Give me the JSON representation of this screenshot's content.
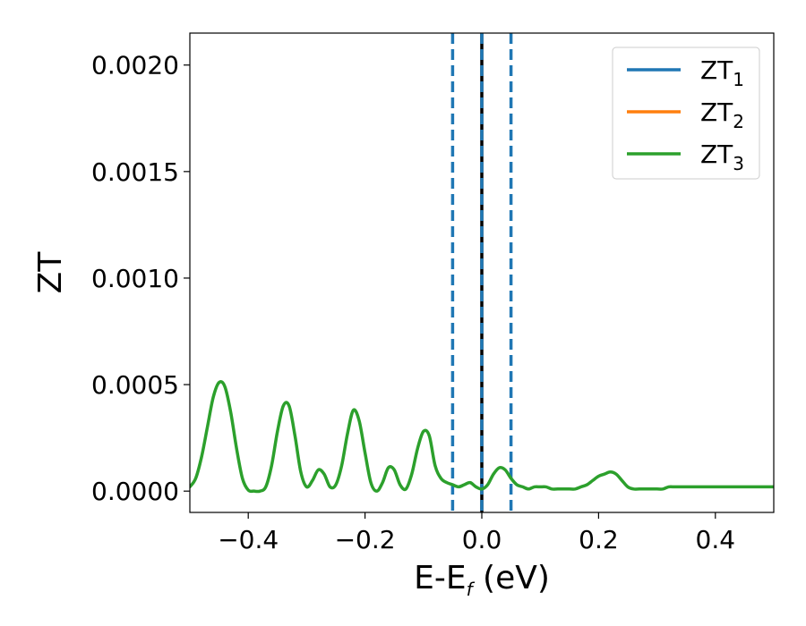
{
  "chart_data": {
    "type": "line",
    "xlabel": {
      "main": "E-E",
      "sub": "f",
      "suffix": " (eV)"
    },
    "ylabel": "ZT",
    "xlim": [
      -0.5,
      0.5
    ],
    "ylim": [
      -0.0001,
      0.00215
    ],
    "xticks": [
      -0.4,
      -0.2,
      0.0,
      0.2,
      0.4
    ],
    "xtick_labels": [
      "−0.4",
      "−0.2",
      "0.0",
      "0.2",
      "0.4"
    ],
    "yticks": [
      0.0,
      0.0005,
      0.001,
      0.0015,
      0.002
    ],
    "ytick_labels": [
      "0.0000",
      "0.0005",
      "0.0010",
      "0.0015",
      "0.0020"
    ],
    "grid": false,
    "legend_position": "top-right",
    "vlines": [
      {
        "x": -0.05,
        "color": "#1f77b4",
        "style": "dashed"
      },
      {
        "x": 0.05,
        "color": "#1f77b4",
        "style": "dashed"
      },
      {
        "x": 0.0,
        "color": "#000000",
        "style": "solid"
      },
      {
        "x": 0.0,
        "color": "#1f77b4",
        "style": "dashed"
      }
    ],
    "series": [
      {
        "name": "ZT",
        "sub": "1",
        "color": "#1f77b4",
        "x": [],
        "y": []
      },
      {
        "name": "ZT",
        "sub": "2",
        "color": "#ff7f0e",
        "x": [],
        "y": []
      },
      {
        "name": "ZT",
        "sub": "3",
        "color": "#2ca02c",
        "x": [
          -0.5,
          -0.49,
          -0.48,
          -0.47,
          -0.46,
          -0.45,
          -0.44,
          -0.43,
          -0.42,
          -0.41,
          -0.4,
          -0.39,
          -0.38,
          -0.37,
          -0.36,
          -0.35,
          -0.34,
          -0.33,
          -0.32,
          -0.31,
          -0.3,
          -0.29,
          -0.28,
          -0.27,
          -0.26,
          -0.25,
          -0.24,
          -0.23,
          -0.22,
          -0.21,
          -0.2,
          -0.19,
          -0.18,
          -0.17,
          -0.16,
          -0.15,
          -0.14,
          -0.13,
          -0.12,
          -0.11,
          -0.1,
          -0.09,
          -0.08,
          -0.07,
          -0.06,
          -0.05,
          -0.04,
          -0.03,
          -0.02,
          -0.01,
          0.0,
          0.01,
          0.02,
          0.03,
          0.04,
          0.05,
          0.06,
          0.07,
          0.08,
          0.09,
          0.1,
          0.11,
          0.12,
          0.13,
          0.14,
          0.15,
          0.16,
          0.17,
          0.18,
          0.19,
          0.2,
          0.21,
          0.22,
          0.23,
          0.24,
          0.25,
          0.26,
          0.27,
          0.28,
          0.29,
          0.3,
          0.31,
          0.32,
          0.33,
          0.34,
          0.35,
          0.36,
          0.37,
          0.38,
          0.39,
          0.4,
          0.41,
          0.42,
          0.43,
          0.44,
          0.45,
          0.46,
          0.47,
          0.48,
          0.49,
          0.5
        ],
        "y": [
          2e-05,
          6e-05,
          0.00016,
          0.0003,
          0.00044,
          0.00051,
          0.00049,
          0.00037,
          0.0002,
          6e-05,
          5e-06,
          0.0,
          0.0,
          2e-05,
          0.00012,
          0.00028,
          0.0004,
          0.0004,
          0.00026,
          9e-05,
          2e-05,
          5e-05,
          0.0001,
          8e-05,
          2e-05,
          3e-05,
          0.00012,
          0.00027,
          0.00038,
          0.00033,
          0.00018,
          4e-05,
          0.0,
          4e-05,
          0.00011,
          0.0001,
          3e-05,
          1e-05,
          8e-05,
          0.0002,
          0.00028,
          0.00026,
          0.00012,
          6e-05,
          4e-05,
          3e-05,
          2e-05,
          3e-05,
          4e-05,
          2e-05,
          1e-05,
          3e-05,
          8e-05,
          0.00011,
          0.0001,
          6e-05,
          3e-05,
          2e-05,
          1e-05,
          2e-05,
          2e-05,
          2e-05,
          1e-05,
          1e-05,
          1e-05,
          1e-05,
          1e-05,
          2e-05,
          3e-05,
          5e-05,
          7e-05,
          8e-05,
          9e-05,
          8e-05,
          5e-05,
          2e-05,
          1e-05,
          1e-05,
          1e-05,
          1e-05,
          1e-05,
          1e-05,
          2e-05,
          2e-05,
          2e-05,
          2e-05,
          2e-05,
          2e-05,
          2e-05,
          2e-05,
          2e-05,
          2e-05,
          2e-05,
          2e-05,
          2e-05,
          2e-05,
          2e-05,
          2e-05,
          2e-05,
          2e-05,
          2e-05
        ]
      }
    ]
  }
}
